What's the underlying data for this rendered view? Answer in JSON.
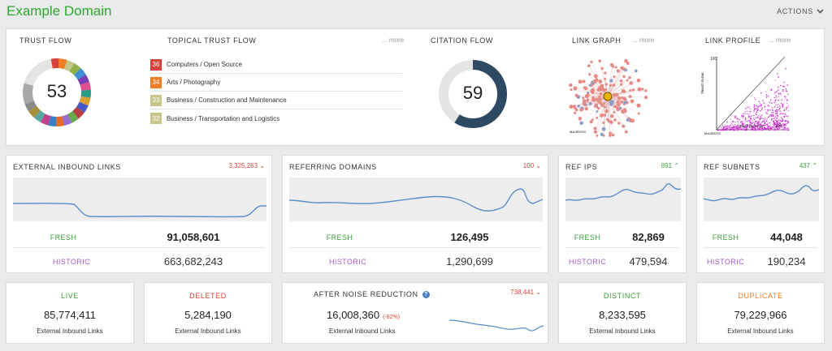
{
  "header": {
    "title": "Example Domain",
    "actions_label": "ACTIONS"
  },
  "overview": {
    "trust_flow": {
      "title": "TRUST FLOW",
      "value": "53"
    },
    "topical_trust_flow": {
      "title": "TOPICAL TRUST FLOW",
      "more": "... more",
      "items": [
        {
          "score": "36",
          "label": "Computers / Open Source",
          "color": "#d9423a"
        },
        {
          "score": "34",
          "label": "Arts / Photography",
          "color": "#f07c23"
        },
        {
          "score": "33",
          "label": "Business / Construction and Maintenance",
          "color": "#c6c58a"
        },
        {
          "score": "32",
          "label": "Business / Transportation and Logistics",
          "color": "#c6c58a"
        }
      ]
    },
    "citation_flow": {
      "title": "CITATION FLOW",
      "value": "59",
      "fraction": 0.59
    },
    "link_graph": {
      "title": "LINK GRAPH",
      "more": "... more",
      "logo": "MAJESTIC"
    },
    "link_profile": {
      "title": "LINK PROFILE",
      "more": "... more",
      "y_label": "TRUST FLOW",
      "x_label": "CITATION FLOW",
      "y_max": "100",
      "x_max": "100",
      "logo": "MAJESTIC"
    }
  },
  "metrics": {
    "external_inbound": {
      "title": "EXTERNAL INBOUND LINKS",
      "delta": "3,325,263",
      "delta_dir": "down",
      "fresh_label": "FRESH",
      "fresh": "91,058,601",
      "historic_label": "HISTORIC",
      "historic": "663,682,243"
    },
    "referring_domains": {
      "title": "REFERRING DOMAINS",
      "delta": "100",
      "delta_dir": "down",
      "fresh_label": "FRESH",
      "fresh": "126,495",
      "historic_label": "HISTORIC",
      "historic": "1,290,699"
    },
    "ref_ips": {
      "title": "REF IPS",
      "delta": "891",
      "delta_dir": "up",
      "fresh_label": "FRESH",
      "fresh": "82,869",
      "historic_label": "HISTORIC",
      "historic": "479,594"
    },
    "ref_subnets": {
      "title": "REF SUBNETS",
      "delta": "437",
      "delta_dir": "up",
      "fresh_label": "FRESH",
      "fresh": "44,048",
      "historic_label": "HISTORIC",
      "historic": "190,234"
    }
  },
  "bottom": {
    "live": {
      "title": "LIVE",
      "value": "85,774,411",
      "sub": "External Inbound Links",
      "color": "#3aa03a"
    },
    "deleted": {
      "title": "DELETED",
      "value": "5,284,190",
      "sub": "External Inbound Links",
      "color": "#d9423a"
    },
    "noise": {
      "title": "AFTER NOISE REDUCTION",
      "value": "16,008,360",
      "pct": "(-82%)",
      "delta": "738,441",
      "sub": "External Inbound Links"
    },
    "distinct": {
      "title": "DISTINCT",
      "value": "8,233,595",
      "sub": "External Inbound Links",
      "color": "#3aa03a"
    },
    "duplicate": {
      "title": "DUPLICATE",
      "value": "79,229,966",
      "sub": "External Inbound Links",
      "color": "#f07c23"
    }
  },
  "colors": {
    "accent_green": "#2ea82e",
    "line_blue": "#5b8ec9",
    "citation_dark": "#2e4a62",
    "up_green": "#3aa03a",
    "down_red": "#d9423a"
  }
}
